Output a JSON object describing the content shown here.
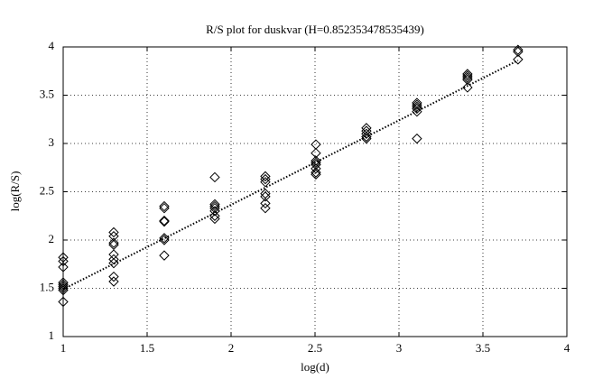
{
  "chart_data": {
    "type": "scatter",
    "title": "R/S plot for duskvar (H=0.852353478535439)",
    "x_label": "log(d)",
    "y_label": "log(R/S)",
    "x": [
      1,
      1,
      1,
      1,
      1,
      1,
      1,
      1,
      1,
      1.301,
      1.301,
      1.301,
      1.301,
      1.301,
      1.301,
      1.301,
      1.301,
      1.301,
      1.602,
      1.602,
      1.602,
      1.602,
      1.602,
      1.602,
      1.602,
      1.903,
      1.903,
      1.903,
      1.903,
      1.903,
      1.903,
      1.903,
      2.204,
      2.204,
      2.204,
      2.204,
      2.204,
      2.204,
      2.204,
      2.505,
      2.505,
      2.505,
      2.505,
      2.505,
      2.505,
      2.505,
      2.505,
      2.806,
      2.806,
      2.806,
      2.806,
      2.806,
      3.107,
      3.107,
      3.107,
      3.107,
      3.107,
      3.107,
      3.408,
      3.408,
      3.408,
      3.408,
      3.408,
      3.709,
      3.709,
      3.709
    ],
    "values": [
      1.82,
      1.78,
      1.72,
      1.56,
      1.54,
      1.52,
      1.5,
      1.48,
      1.36,
      2.08,
      2.04,
      1.97,
      1.95,
      1.85,
      1.8,
      1.76,
      1.62,
      1.57,
      2.35,
      2.33,
      2.2,
      2.19,
      2.02,
      2.0,
      1.84,
      2.65,
      2.37,
      2.35,
      2.33,
      2.3,
      2.25,
      2.22,
      2.66,
      2.63,
      2.6,
      2.48,
      2.45,
      2.38,
      2.33,
      2.99,
      2.9,
      2.82,
      2.8,
      2.78,
      2.74,
      2.7,
      2.68,
      3.16,
      3.13,
      3.1,
      3.07,
      3.05,
      3.42,
      3.4,
      3.38,
      3.36,
      3.33,
      3.05,
      3.72,
      3.7,
      3.68,
      3.66,
      3.58,
      3.97,
      3.95,
      3.87
    ],
    "color": "#000000",
    "fit": {
      "x": [
        1,
        3.709
      ],
      "values": [
        1.49,
        3.86
      ]
    },
    "xlim": [
      1,
      4
    ],
    "xticks": [
      1,
      1.5,
      2,
      2.5,
      3,
      3.5,
      4
    ],
    "ylim": [
      1,
      4
    ],
    "yticks": [
      1,
      1.5,
      2,
      2.5,
      3,
      3.5,
      4
    ],
    "grid": true
  }
}
